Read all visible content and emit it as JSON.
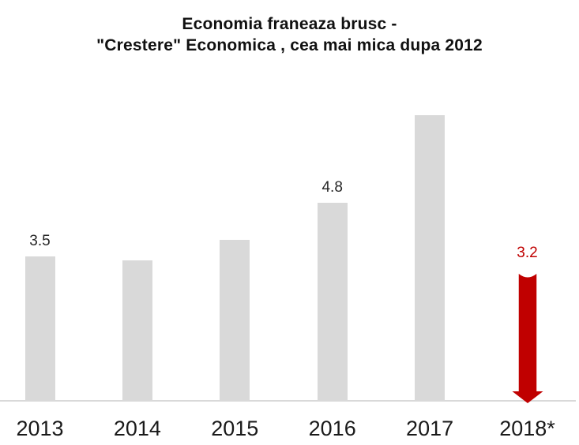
{
  "chart_data": {
    "type": "bar",
    "title": "Economia franeaza brusc - \"Crestere\" Economica , cea mai mica dupa 2012",
    "title_line1": "Economia franeaza brusc -",
    "title_line2": "\"Crestere\" Economica , cea mai mica dupa 2012",
    "xlabel": "",
    "ylabel": "",
    "ylim": [
      0,
      8
    ],
    "grid": false,
    "legend": false,
    "categories": [
      "2013",
      "2014",
      "2015",
      "2016",
      "2017",
      "2018*"
    ],
    "values": [
      3.5,
      3.4,
      3.9,
      4.8,
      6.9,
      3.2
    ],
    "bar_color": "#d9d9d9",
    "accent_color": "#c00000",
    "axis_line_color": "#d9d9d9",
    "points": [
      {
        "category": "2013",
        "value": 3.5,
        "label": "3.5",
        "marker": "bar"
      },
      {
        "category": "2014",
        "value": 3.4,
        "label": "",
        "marker": "bar"
      },
      {
        "category": "2015",
        "value": 3.9,
        "label": "",
        "marker": "bar"
      },
      {
        "category": "2016",
        "value": 4.8,
        "label": "4.8",
        "marker": "bar"
      },
      {
        "category": "2017",
        "value": 6.9,
        "label": "",
        "marker": "bar"
      },
      {
        "category": "2018*",
        "value": 3.2,
        "label": "3.2",
        "marker": "down-arrow",
        "color": "#c00000",
        "label_color": "#c00000"
      }
    ]
  }
}
